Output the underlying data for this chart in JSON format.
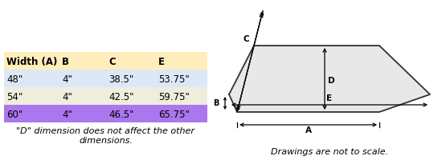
{
  "table_headers": [
    "Width (A)",
    "B",
    "C",
    "E"
  ],
  "table_rows": [
    [
      "48\"",
      "4\"",
      "38.5\"",
      "53.75\""
    ],
    [
      "54\"",
      "4\"",
      "42.5\"",
      "59.75\""
    ],
    [
      "60\"",
      "4\"",
      "46.5\"",
      "65.75\""
    ]
  ],
  "row_colors": [
    "#dce8f5",
    "#eeeedd",
    "#aa77ee"
  ],
  "header_color": "#ffeebb",
  "note": "\"D\" dimension does not affect the other\ndimensions.",
  "diagram_note": "Drawings are not to scale.",
  "header_fontsize": 8.5,
  "row_fontsize": 8.5,
  "note_fontsize": 8,
  "diagram_label_fontsize": 7.5,
  "shape_fill": "#e8e8e8",
  "shape_edge_color": "#333333",
  "arrow_color": "#111111"
}
